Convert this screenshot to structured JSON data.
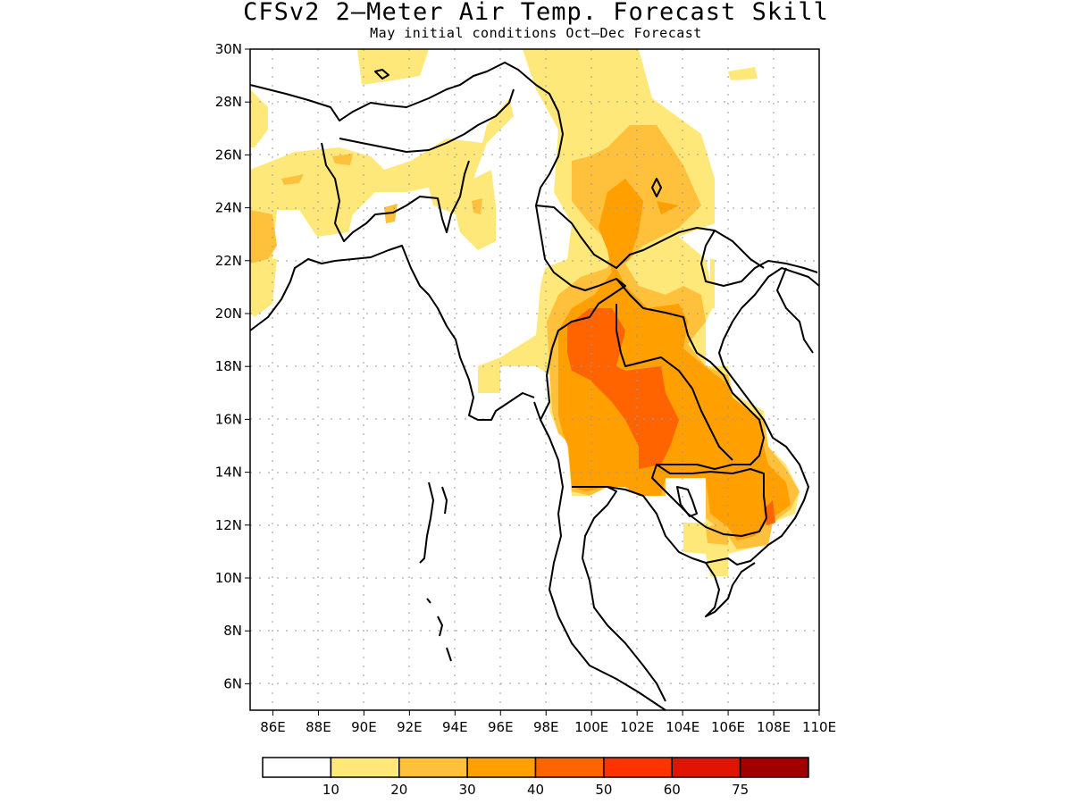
{
  "title": "CFSv2 2–Meter Air Temp. Forecast Skill",
  "subtitle": "May initial conditions  Oct–Dec Forecast",
  "map": {
    "lon_range": [
      85,
      110
    ],
    "lat_range": [
      5,
      30
    ],
    "x_ticks": [
      "86E",
      "88E",
      "90E",
      "92E",
      "94E",
      "96E",
      "98E",
      "100E",
      "102E",
      "104E",
      "106E",
      "108E",
      "110E"
    ],
    "y_ticks": [
      "6N",
      "8N",
      "10N",
      "12N",
      "14N",
      "16N",
      "18N",
      "20N",
      "22N",
      "24N",
      "26N",
      "28N",
      "30N"
    ]
  },
  "legend": {
    "labels": [
      "10",
      "20",
      "30",
      "40",
      "50",
      "60",
      "75"
    ],
    "colors": [
      "#ffffff",
      "#ffe87a",
      "#ffc03c",
      "#ffa000",
      "#ff6400",
      "#ff3200",
      "#e01400",
      "#a00000"
    ]
  }
}
